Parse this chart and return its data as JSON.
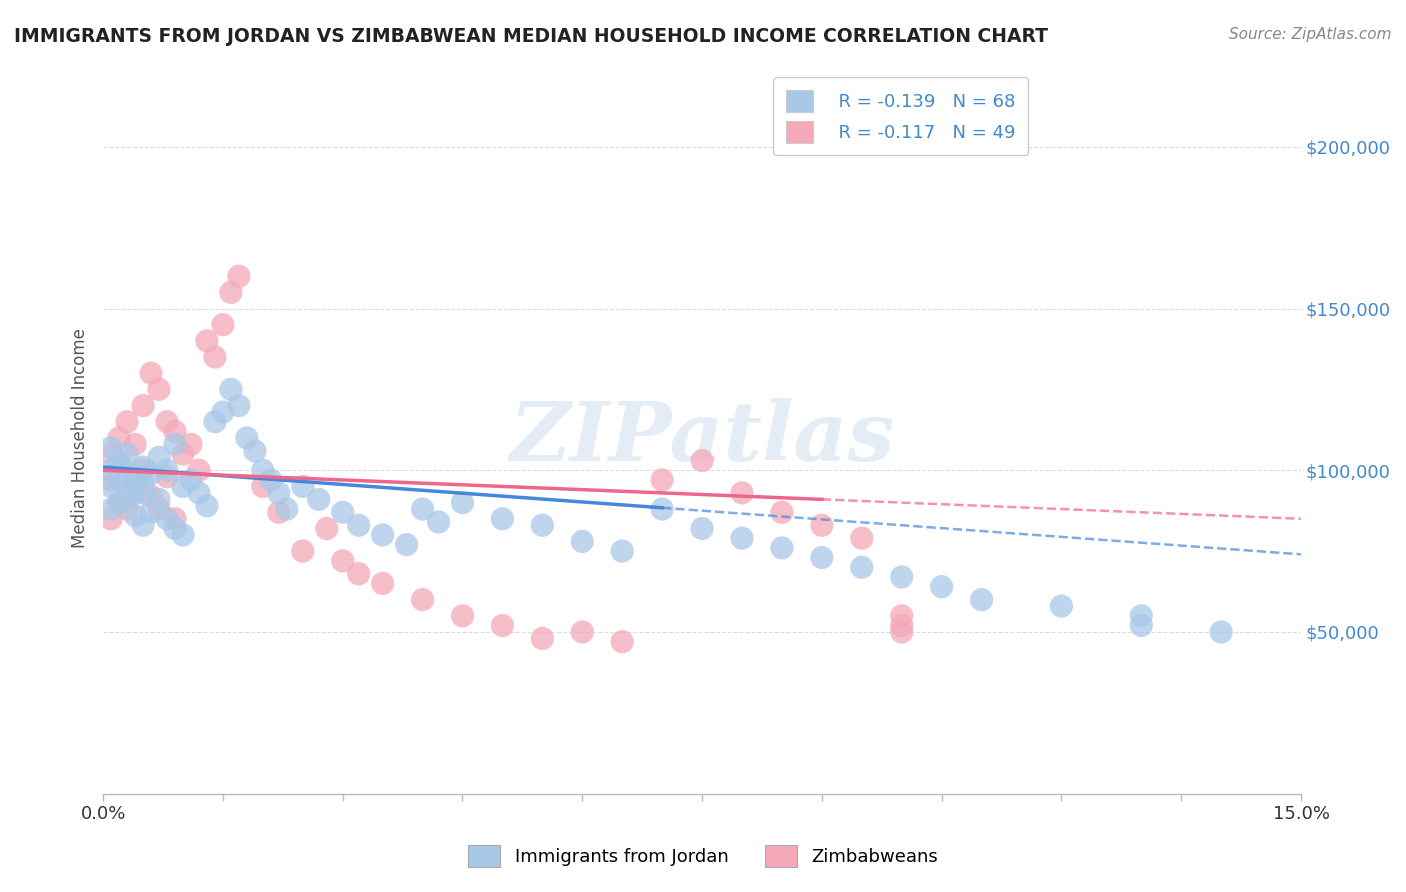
{
  "title": "IMMIGRANTS FROM JORDAN VS ZIMBABWEAN MEDIAN HOUSEHOLD INCOME CORRELATION CHART",
  "source_text": "Source: ZipAtlas.com",
  "ylabel": "Median Household Income",
  "watermark": "ZIPatlas",
  "legend_entries": [
    {
      "label": "Immigrants from Jordan",
      "R": -0.139,
      "N": 68,
      "color": "#a8c8e8",
      "marker_color": "#a8c8e8"
    },
    {
      "label": "Zimbabweans",
      "R": -0.117,
      "N": 49,
      "color": "#f4a8b8",
      "marker_color": "#f4a8b8"
    }
  ],
  "trend_blue": "#4488dd",
  "trend_pink": "#ee6688",
  "grid_color": "#dddddd",
  "background_color": "#ffffff",
  "xlim": [
    0.0,
    0.15
  ],
  "ylim": [
    0,
    220000
  ],
  "yticks": [
    50000,
    100000,
    150000,
    200000
  ],
  "ytick_labels": [
    "$50,000",
    "$100,000",
    "$150,000",
    "$200,000"
  ],
  "blue_x": [
    0.001,
    0.001,
    0.001,
    0.002,
    0.002,
    0.002,
    0.003,
    0.003,
    0.004,
    0.004,
    0.004,
    0.005,
    0.005,
    0.005,
    0.006,
    0.006,
    0.007,
    0.007,
    0.008,
    0.008,
    0.009,
    0.009,
    0.01,
    0.01,
    0.011,
    0.012,
    0.013,
    0.014,
    0.015,
    0.016,
    0.017,
    0.018,
    0.019,
    0.02,
    0.021,
    0.022,
    0.023,
    0.025,
    0.027,
    0.03,
    0.032,
    0.035,
    0.038,
    0.04,
    0.042,
    0.045,
    0.05,
    0.055,
    0.06,
    0.065,
    0.07,
    0.075,
    0.08,
    0.085,
    0.09,
    0.095,
    0.1,
    0.105,
    0.11,
    0.12,
    0.13,
    0.13,
    0.14,
    0.001,
    0.002,
    0.003,
    0.004,
    0.005
  ],
  "blue_y": [
    100000,
    95000,
    88000,
    102000,
    97000,
    90000,
    105000,
    92000,
    98000,
    93000,
    86000,
    101000,
    96000,
    83000,
    99000,
    87000,
    104000,
    91000,
    100000,
    85000,
    108000,
    82000,
    95000,
    80000,
    97000,
    93000,
    89000,
    115000,
    118000,
    125000,
    120000,
    110000,
    106000,
    100000,
    97000,
    93000,
    88000,
    95000,
    91000,
    87000,
    83000,
    80000,
    77000,
    88000,
    84000,
    90000,
    85000,
    83000,
    78000,
    75000,
    88000,
    82000,
    79000,
    76000,
    73000,
    70000,
    67000,
    64000,
    60000,
    58000,
    55000,
    52000,
    50000,
    107000,
    103000,
    99000,
    96000,
    93000
  ],
  "pink_x": [
    0.001,
    0.001,
    0.001,
    0.002,
    0.002,
    0.003,
    0.003,
    0.004,
    0.004,
    0.005,
    0.005,
    0.006,
    0.006,
    0.007,
    0.007,
    0.008,
    0.008,
    0.009,
    0.009,
    0.01,
    0.011,
    0.012,
    0.013,
    0.014,
    0.015,
    0.016,
    0.017,
    0.02,
    0.022,
    0.025,
    0.028,
    0.03,
    0.032,
    0.035,
    0.04,
    0.045,
    0.05,
    0.055,
    0.06,
    0.065,
    0.07,
    0.075,
    0.08,
    0.085,
    0.09,
    0.095,
    0.1,
    0.1,
    0.1
  ],
  "pink_y": [
    105000,
    97000,
    85000,
    110000,
    90000,
    115000,
    88000,
    108000,
    95000,
    120000,
    100000,
    130000,
    92000,
    125000,
    88000,
    115000,
    98000,
    112000,
    85000,
    105000,
    108000,
    100000,
    140000,
    135000,
    145000,
    155000,
    160000,
    95000,
    87000,
    75000,
    82000,
    72000,
    68000,
    65000,
    60000,
    55000,
    52000,
    48000,
    50000,
    47000,
    97000,
    103000,
    93000,
    87000,
    83000,
    79000,
    52000,
    55000,
    50000
  ]
}
